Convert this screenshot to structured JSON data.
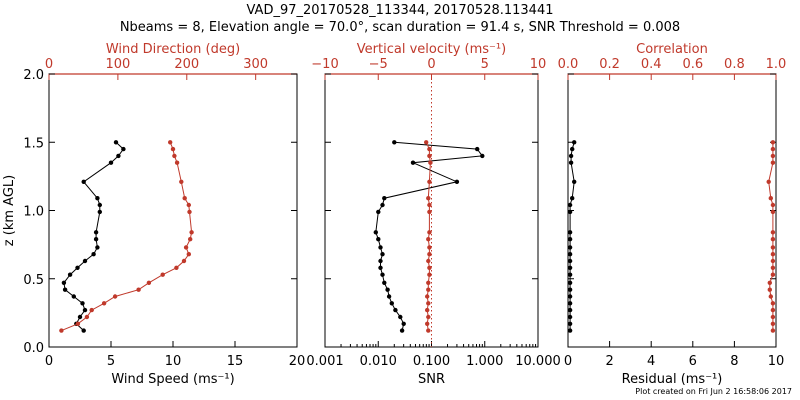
{
  "title": "VAD_97_20170528_113344, 20170528.113441",
  "subtitle": "Nbeams = 8, Elevation angle = 70.0°, scan duration = 91.4 s, SNR Threshold = 0.008",
  "credit": "Plot created on Fri Jun  2 16:58:06 2017",
  "colors": {
    "black": "#000000",
    "red": "#c0392b"
  },
  "chart_data": [
    {
      "type": "line",
      "ylabel": "z (km AGL)",
      "ylim": [
        0,
        2
      ],
      "yticks": [
        "0.0",
        "0.5",
        "1.0",
        "1.5",
        "2.0"
      ],
      "xlabel_bottom": "Wind Speed (ms⁻¹)",
      "xlim_bottom": [
        0,
        20
      ],
      "xticks_bottom": [
        "0",
        "5",
        "10",
        "15",
        "20"
      ],
      "xlabel_top": "Wind Direction (deg)",
      "xlim_top": [
        0,
        360
      ],
      "xticks_top": [
        "0",
        "100",
        "200",
        "300"
      ],
      "xtick_values_top": [
        0,
        100,
        200,
        300
      ],
      "series": [
        {
          "axis": "bottom",
          "color": "#000000",
          "x": [
            2.8,
            2.2,
            2.5,
            2.9,
            2.7,
            2.0,
            1.3,
            1.2,
            1.7,
            2.3,
            2.9,
            3.6,
            3.9,
            3.8,
            3.8,
            4.1,
            4.1,
            3.9,
            2.8,
            5.0,
            5.6,
            6.0,
            5.4
          ],
          "y": [
            0.12,
            0.17,
            0.22,
            0.27,
            0.32,
            0.37,
            0.42,
            0.47,
            0.53,
            0.58,
            0.63,
            0.68,
            0.73,
            0.79,
            0.84,
            0.99,
            1.04,
            1.09,
            1.21,
            1.35,
            1.4,
            1.45,
            1.5
          ]
        },
        {
          "axis": "top",
          "color": "#c0392b",
          "x": [
            18,
            42,
            55,
            62,
            80,
            96,
            130,
            145,
            165,
            185,
            196,
            203,
            199,
            205,
            207,
            204,
            203,
            197,
            192,
            186,
            182,
            180,
            176
          ],
          "y": [
            0.12,
            0.17,
            0.22,
            0.27,
            0.32,
            0.37,
            0.42,
            0.47,
            0.53,
            0.58,
            0.63,
            0.68,
            0.73,
            0.79,
            0.84,
            0.99,
            1.04,
            1.09,
            1.21,
            1.35,
            1.4,
            1.45,
            1.5
          ]
        }
      ]
    },
    {
      "type": "line",
      "xlabel_bottom": "SNR",
      "xscale_bottom": "log",
      "xlim_bottom": [
        0.001,
        10
      ],
      "xticks_bottom": [
        "0.001",
        "0.010",
        "0.100",
        "1.000",
        "10.000"
      ],
      "xtick_values_bottom": [
        0.001,
        0.01,
        0.1,
        1,
        10
      ],
      "xlabel_top": "Vertical velocity (ms⁻¹)",
      "xlim_top": [
        -10,
        10
      ],
      "xticks_top": [
        "−10",
        "−5",
        "0",
        "5",
        "10"
      ],
      "xtick_values_top": [
        -10,
        -5,
        0,
        5,
        10
      ],
      "series": [
        {
          "axis": "bottom",
          "color": "#000000",
          "x": [
            0.028,
            0.03,
            0.026,
            0.021,
            0.018,
            0.016,
            0.015,
            0.013,
            0.012,
            0.011,
            0.011,
            0.012,
            0.011,
            0.01,
            0.009,
            0.01,
            0.012,
            0.013,
            0.3,
            0.045,
            0.9,
            0.72,
            0.02
          ],
          "y": [
            0.12,
            0.17,
            0.22,
            0.27,
            0.32,
            0.37,
            0.42,
            0.47,
            0.53,
            0.58,
            0.63,
            0.68,
            0.73,
            0.79,
            0.84,
            0.99,
            1.04,
            1.09,
            1.21,
            1.35,
            1.4,
            1.45,
            1.5
          ]
        },
        {
          "axis": "top",
          "color": "#c0392b",
          "x": [
            -0.3,
            -0.4,
            -0.3,
            -0.4,
            -0.3,
            -0.4,
            -0.3,
            -0.3,
            -0.2,
            -0.2,
            -0.3,
            -0.2,
            -0.2,
            -0.3,
            -0.2,
            -0.2,
            -0.2,
            -0.3,
            -0.2,
            -0.1,
            -0.2,
            -0.2,
            -0.5
          ],
          "y": [
            0.12,
            0.17,
            0.22,
            0.27,
            0.32,
            0.37,
            0.42,
            0.47,
            0.53,
            0.58,
            0.63,
            0.68,
            0.73,
            0.79,
            0.84,
            0.99,
            1.04,
            1.09,
            1.21,
            1.35,
            1.4,
            1.45,
            1.5
          ]
        }
      ],
      "reference_line": {
        "axis": "top",
        "value": 0,
        "color": "#c0392b",
        "style": "dotted"
      }
    },
    {
      "type": "line",
      "xlabel_bottom": "Residual (ms⁻¹)",
      "xlim_bottom": [
        0,
        10
      ],
      "xticks_bottom": [
        "0",
        "2",
        "4",
        "6",
        "8",
        "10"
      ],
      "xlabel_top": "Correlation",
      "xlim_top": [
        0,
        1
      ],
      "xticks_top": [
        "0.0",
        "0.2",
        "0.4",
        "0.6",
        "0.8",
        "1.0"
      ],
      "xtick_values_top": [
        0,
        0.2,
        0.4,
        0.6,
        0.8,
        1.0
      ],
      "series": [
        {
          "axis": "bottom",
          "color": "#000000",
          "x": [
            0.1,
            0.1,
            0.1,
            0.1,
            0.1,
            0.1,
            0.1,
            0.1,
            0.1,
            0.1,
            0.1,
            0.1,
            0.1,
            0.1,
            0.1,
            0.1,
            0.1,
            0.2,
            0.3,
            0.15,
            0.15,
            0.2,
            0.3
          ],
          "y": [
            0.12,
            0.17,
            0.22,
            0.27,
            0.32,
            0.37,
            0.42,
            0.47,
            0.53,
            0.58,
            0.63,
            0.68,
            0.73,
            0.79,
            0.84,
            0.99,
            1.04,
            1.09,
            1.21,
            1.35,
            1.4,
            1.45,
            1.5
          ]
        },
        {
          "axis": "top",
          "color": "#c0392b",
          "x": [
            0.985,
            0.985,
            0.985,
            0.985,
            0.985,
            0.975,
            0.97,
            0.97,
            0.985,
            0.985,
            0.985,
            0.985,
            0.985,
            0.985,
            0.985,
            0.985,
            0.985,
            0.975,
            0.965,
            0.985,
            0.985,
            0.985,
            0.985
          ],
          "y": [
            0.12,
            0.17,
            0.22,
            0.27,
            0.32,
            0.37,
            0.42,
            0.47,
            0.53,
            0.58,
            0.63,
            0.68,
            0.73,
            0.79,
            0.84,
            0.99,
            1.04,
            1.09,
            1.21,
            1.35,
            1.4,
            1.45,
            1.5
          ]
        }
      ]
    }
  ]
}
